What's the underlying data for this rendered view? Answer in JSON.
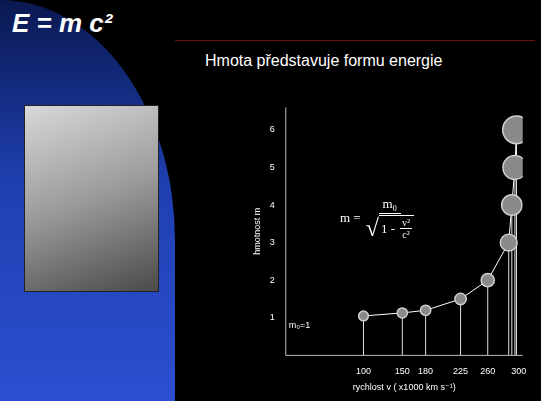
{
  "slide": {
    "title": "E = m c²",
    "subtitle": "Hmota představuje formu energie"
  },
  "chart_data": {
    "type": "scatter",
    "x_label": "rychlost v ( x1000 km s⁻¹)",
    "y_label": "hmotnost m",
    "annotations": [
      "m₀=1"
    ],
    "formula": {
      "lhs": "m =",
      "numerator": "m₀",
      "radical": "√",
      "radicand_lead": "1 -",
      "radicand_numerator": "v²",
      "radicand_denominator": "c²"
    },
    "x": [
      100,
      150,
      180,
      225,
      260,
      287,
      291,
      295,
      297
    ],
    "values": [
      1.05,
      1.13,
      1.2,
      1.5,
      2.0,
      3.0,
      4.0,
      5.0,
      6.0
    ],
    "color": "#8a8a8a",
    "marker": "circle",
    "line_style": "solid",
    "xlim": [
      0,
      305
    ],
    "xticks": [
      100,
      150,
      180,
      225,
      260,
      300
    ],
    "ylim": [
      0,
      6.6
    ],
    "yticks": [
      1,
      2,
      3,
      4,
      5,
      6
    ],
    "grid": false
  }
}
